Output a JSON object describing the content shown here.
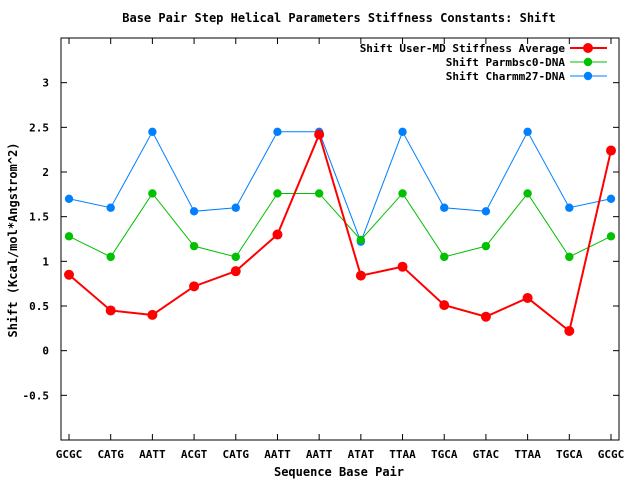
{
  "chart_data": {
    "type": "line",
    "title": "Base Pair Step Helical Parameters Stiffness Constants: Shift",
    "xlabel": "Sequence Base Pair",
    "ylabel": "Shift (Kcal/mol*Angstrom^2)",
    "categories": [
      "GCGC",
      "CATG",
      "AATT",
      "ACGT",
      "CATG",
      "AATT",
      "AATT",
      "ATAT",
      "TTAA",
      "TGCA",
      "GTAC",
      "TTAA",
      "TGCA",
      "GCGC"
    ],
    "ylim": [
      -1.0,
      3.5
    ],
    "yticks": [
      -0.5,
      0,
      0.5,
      1,
      1.5,
      2,
      2.5,
      3
    ],
    "ytick_labels": [
      "-0.5",
      "0",
      "0.5",
      "1",
      "1.5",
      "2",
      "2.5",
      "3"
    ],
    "grid": false,
    "legend_position": "top-right",
    "series": [
      {
        "name": "Shift User-MD Stiffness Average",
        "color": "#ff0000",
        "values": [
          0.85,
          0.45,
          0.4,
          0.72,
          0.89,
          1.3,
          2.42,
          0.84,
          0.94,
          0.51,
          0.38,
          0.59,
          0.22,
          2.24
        ]
      },
      {
        "name": "Shift Parmbsc0-DNA",
        "color": "#00c000",
        "values": [
          1.28,
          1.05,
          1.76,
          1.17,
          1.05,
          1.76,
          1.76,
          1.24,
          1.76,
          1.05,
          1.17,
          1.76,
          1.05,
          1.28
        ]
      },
      {
        "name": "Shift Charmm27-DNA",
        "color": "#0080ff",
        "values": [
          1.7,
          1.6,
          2.45,
          1.56,
          1.6,
          2.45,
          2.45,
          1.22,
          2.45,
          1.6,
          1.56,
          2.45,
          1.6,
          1.7
        ]
      }
    ]
  }
}
